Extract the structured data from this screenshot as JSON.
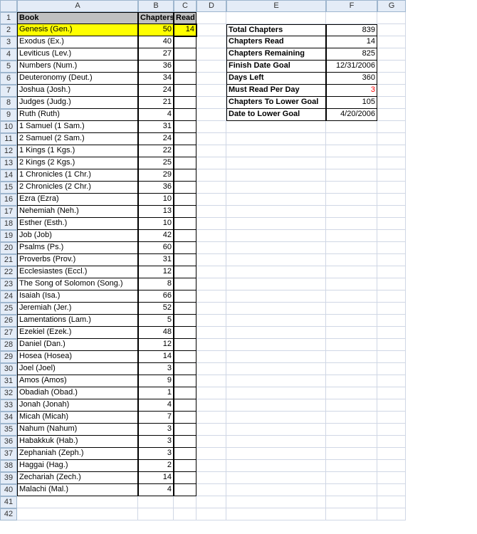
{
  "columns": [
    "A",
    "B",
    "C",
    "D",
    "E",
    "F",
    "G"
  ],
  "rowCount": 42,
  "selectedCell": {
    "row": 2,
    "col": "C"
  },
  "headers": {
    "A1": "Book",
    "B1": "Chapters",
    "C1": "Read"
  },
  "books": [
    {
      "name": "Genesis (Gen.)",
      "chapters": 50,
      "read": 14,
      "highlight": true
    },
    {
      "name": "Exodus (Ex.)",
      "chapters": 40,
      "read": ""
    },
    {
      "name": "Leviticus (Lev.)",
      "chapters": 27,
      "read": ""
    },
    {
      "name": "Numbers (Num.)",
      "chapters": 36,
      "read": ""
    },
    {
      "name": "Deuteronomy (Deut.)",
      "chapters": 34,
      "read": ""
    },
    {
      "name": "Joshua (Josh.)",
      "chapters": 24,
      "read": ""
    },
    {
      "name": "Judges (Judg.)",
      "chapters": 21,
      "read": ""
    },
    {
      "name": "Ruth (Ruth)",
      "chapters": 4,
      "read": ""
    },
    {
      "name": "1 Samuel (1 Sam.)",
      "chapters": 31,
      "read": ""
    },
    {
      "name": "2 Samuel (2 Sam.)",
      "chapters": 24,
      "read": ""
    },
    {
      "name": "1 Kings (1 Kgs.)",
      "chapters": 22,
      "read": ""
    },
    {
      "name": "2 Kings (2 Kgs.)",
      "chapters": 25,
      "read": ""
    },
    {
      "name": "1 Chronicles (1 Chr.)",
      "chapters": 29,
      "read": ""
    },
    {
      "name": "2 Chronicles (2 Chr.)",
      "chapters": 36,
      "read": ""
    },
    {
      "name": "Ezra (Ezra)",
      "chapters": 10,
      "read": ""
    },
    {
      "name": "Nehemiah (Neh.)",
      "chapters": 13,
      "read": ""
    },
    {
      "name": "Esther (Esth.)",
      "chapters": 10,
      "read": ""
    },
    {
      "name": "Job (Job)",
      "chapters": 42,
      "read": ""
    },
    {
      "name": "Psalms (Ps.)",
      "chapters": 60,
      "read": ""
    },
    {
      "name": "Proverbs (Prov.)",
      "chapters": 31,
      "read": ""
    },
    {
      "name": "Ecclesiastes (Eccl.)",
      "chapters": 12,
      "read": ""
    },
    {
      "name": "The Song of Solomon (Song.)",
      "chapters": 8,
      "read": ""
    },
    {
      "name": "Isaiah (Isa.)",
      "chapters": 66,
      "read": ""
    },
    {
      "name": "Jeremiah (Jer.)",
      "chapters": 52,
      "read": ""
    },
    {
      "name": "Lamentations (Lam.)",
      "chapters": 5,
      "read": ""
    },
    {
      "name": "Ezekiel (Ezek.)",
      "chapters": 48,
      "read": ""
    },
    {
      "name": "Daniel (Dan.)",
      "chapters": 12,
      "read": ""
    },
    {
      "name": "Hosea (Hosea)",
      "chapters": 14,
      "read": ""
    },
    {
      "name": "Joel (Joel)",
      "chapters": 3,
      "read": ""
    },
    {
      "name": "Amos (Amos)",
      "chapters": 9,
      "read": ""
    },
    {
      "name": "Obadiah (Obad.)",
      "chapters": 1,
      "read": ""
    },
    {
      "name": "Jonah (Jonah)",
      "chapters": 4,
      "read": ""
    },
    {
      "name": "Micah (Micah)",
      "chapters": 7,
      "read": ""
    },
    {
      "name": "Nahum (Nahum)",
      "chapters": 3,
      "read": ""
    },
    {
      "name": "Habakkuk (Hab.)",
      "chapters": 3,
      "read": ""
    },
    {
      "name": "Zephaniah (Zeph.)",
      "chapters": 3,
      "read": ""
    },
    {
      "name": "Haggai (Hag.)",
      "chapters": 2,
      "read": ""
    },
    {
      "name": "Zechariah (Zech.)",
      "chapters": 14,
      "read": ""
    },
    {
      "name": "Malachi (Mal.)",
      "chapters": 4,
      "read": ""
    }
  ],
  "summary": [
    {
      "label": "Total Chapters",
      "value": "839"
    },
    {
      "label": "Chapters Read",
      "value": "14"
    },
    {
      "label": "Chapters Remaining",
      "value": "825"
    },
    {
      "label": "Finish Date Goal",
      "value": "12/31/2006"
    },
    {
      "label": "Days Left",
      "value": "360"
    },
    {
      "label": "Must Read Per Day",
      "value": "3",
      "red": true
    },
    {
      "label": "Chapters To Lower Goal",
      "value": "105"
    },
    {
      "label": "Date to Lower Goal",
      "value": "4/20/2006"
    }
  ],
  "colors": {
    "headerFill": "#c0c0c0",
    "highlightFill": "#ffff00",
    "gridLine": "#d0d7e5",
    "colHeaderBg": "#e4ecf7",
    "colHeaderBorder": "#9eb6ce",
    "red": "#ff0000"
  }
}
